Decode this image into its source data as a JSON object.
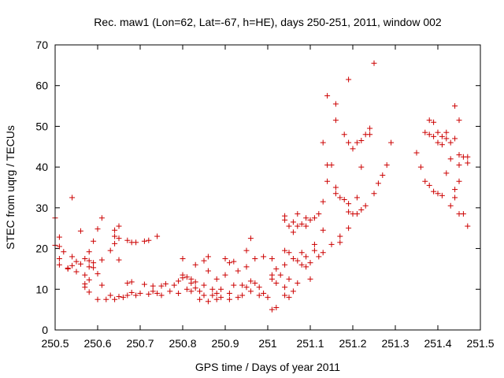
{
  "chart_data": {
    "type": "scatter",
    "title": "Rec. maw1 (Lon=62, Lat=-67, h=HE), days 250-251, 2011, window 002",
    "xlabel": "GPS time / Days of year 2011",
    "ylabel": "STEC from uqrg / TECUs",
    "xlim": [
      250.5,
      251.5
    ],
    "ylim": [
      0,
      70
    ],
    "x_ticks": [
      "250.5",
      "250.6",
      "250.7",
      "250.8",
      "250.9",
      "251",
      "251.1",
      "251.2",
      "251.3",
      "251.4",
      "251.5"
    ],
    "y_ticks": [
      "0",
      "10",
      "20",
      "30",
      "40",
      "50",
      "60",
      "70"
    ],
    "marker": "+",
    "color": "#cc0000",
    "grid": false,
    "legend": "none",
    "series": [
      {
        "values": [
          [
            250.5,
            27.5
          ],
          [
            250.5,
            20.8
          ],
          [
            250.51,
            20.5
          ],
          [
            250.51,
            17.5
          ],
          [
            250.51,
            16.0
          ],
          [
            250.51,
            22.8
          ],
          [
            250.52,
            19.2
          ],
          [
            250.53,
            15.2
          ],
          [
            250.53,
            15.0
          ],
          [
            250.54,
            15.8
          ],
          [
            250.54,
            32.5
          ],
          [
            250.54,
            18.0
          ],
          [
            250.55,
            14.3
          ],
          [
            250.55,
            16.8
          ],
          [
            250.56,
            24.3
          ],
          [
            250.56,
            16.2
          ],
          [
            250.57,
            17.5
          ],
          [
            250.57,
            13.5
          ],
          [
            250.57,
            10.5
          ],
          [
            250.57,
            11.3
          ],
          [
            250.58,
            19.2
          ],
          [
            250.58,
            17.0
          ],
          [
            250.58,
            15.5
          ],
          [
            250.58,
            12.3
          ],
          [
            250.58,
            9.3
          ],
          [
            250.59,
            21.8
          ],
          [
            250.59,
            16.5
          ],
          [
            250.59,
            15.3
          ],
          [
            250.6,
            24.8
          ],
          [
            250.6,
            13.8
          ],
          [
            250.6,
            7.5
          ],
          [
            250.61,
            27.5
          ],
          [
            250.61,
            17.2
          ],
          [
            250.61,
            11.0
          ],
          [
            250.62,
            7.5
          ],
          [
            250.63,
            19.5
          ],
          [
            250.63,
            8.5
          ],
          [
            250.64,
            24.5
          ],
          [
            250.64,
            21.2
          ],
          [
            250.64,
            23.0
          ],
          [
            250.64,
            7.5
          ],
          [
            250.65,
            8.2
          ],
          [
            250.65,
            25.5
          ],
          [
            250.65,
            22.5
          ],
          [
            250.65,
            17.2
          ],
          [
            250.66,
            8.0
          ],
          [
            250.67,
            22.0
          ],
          [
            250.67,
            11.5
          ],
          [
            250.67,
            8.5
          ],
          [
            250.68,
            11.8
          ],
          [
            250.68,
            21.5
          ],
          [
            250.68,
            9.2
          ],
          [
            250.69,
            8.5
          ],
          [
            250.69,
            21.5
          ],
          [
            250.7,
            9.0
          ],
          [
            250.71,
            21.8
          ],
          [
            250.71,
            11.2
          ],
          [
            250.72,
            8.8
          ],
          [
            250.72,
            22.0
          ],
          [
            250.73,
            10.8
          ],
          [
            250.73,
            9.5
          ],
          [
            250.74,
            23.0
          ],
          [
            250.74,
            9.0
          ],
          [
            250.75,
            10.8
          ],
          [
            250.75,
            8.5
          ],
          [
            250.76,
            11.3
          ],
          [
            250.77,
            9.5
          ],
          [
            250.78,
            11.0
          ],
          [
            250.79,
            9.0
          ],
          [
            250.79,
            12.0
          ],
          [
            250.8,
            13.5
          ],
          [
            250.8,
            17.5
          ],
          [
            250.8,
            12.8
          ],
          [
            250.81,
            10.0
          ],
          [
            250.81,
            13.0
          ],
          [
            250.82,
            11.5
          ],
          [
            250.82,
            12.5
          ],
          [
            250.82,
            9.5
          ],
          [
            250.83,
            16.0
          ],
          [
            250.83,
            11.8
          ],
          [
            250.83,
            10.3
          ],
          [
            250.84,
            9.5
          ],
          [
            250.84,
            7.5
          ],
          [
            250.85,
            17.0
          ],
          [
            250.85,
            11.0
          ],
          [
            250.85,
            8.5
          ],
          [
            250.86,
            18.0
          ],
          [
            250.86,
            14.5
          ],
          [
            250.86,
            7.0
          ],
          [
            250.87,
            10.0
          ],
          [
            250.87,
            8.5
          ],
          [
            250.88,
            12.5
          ],
          [
            250.88,
            9.0
          ],
          [
            250.88,
            7.5
          ],
          [
            250.89,
            10.0
          ],
          [
            250.89,
            8.0
          ],
          [
            250.9,
            13.5
          ],
          [
            250.9,
            17.5
          ],
          [
            250.91,
            16.5
          ],
          [
            250.91,
            9.0
          ],
          [
            250.91,
            7.5
          ],
          [
            250.92,
            16.8
          ],
          [
            250.92,
            11.0
          ],
          [
            250.93,
            14.5
          ],
          [
            250.93,
            8.0
          ],
          [
            250.94,
            11.0
          ],
          [
            250.94,
            8.5
          ],
          [
            250.95,
            19.5
          ],
          [
            250.95,
            15.5
          ],
          [
            250.95,
            10.5
          ],
          [
            250.96,
            22.5
          ],
          [
            250.96,
            12.0
          ],
          [
            250.96,
            9.5
          ],
          [
            250.97,
            17.5
          ],
          [
            250.97,
            11.5
          ],
          [
            250.98,
            10.5
          ],
          [
            250.98,
            8.5
          ],
          [
            250.99,
            18.0
          ],
          [
            250.99,
            9.0
          ],
          [
            251.0,
            8.0
          ],
          [
            251.01,
            17.5
          ],
          [
            251.01,
            13.5
          ],
          [
            251.01,
            12.5
          ],
          [
            251.01,
            5.0
          ],
          [
            251.02,
            15.0
          ],
          [
            251.02,
            11.5
          ],
          [
            251.02,
            5.5
          ],
          [
            251.03,
            13.5
          ],
          [
            251.04,
            28.0
          ],
          [
            251.04,
            27.0
          ],
          [
            251.04,
            19.5
          ],
          [
            251.04,
            16.0
          ],
          [
            251.04,
            10.5
          ],
          [
            251.04,
            8.5
          ],
          [
            251.05,
            25.5
          ],
          [
            251.05,
            19.0
          ],
          [
            251.05,
            12.5
          ],
          [
            251.05,
            8.0
          ],
          [
            251.06,
            26.5
          ],
          [
            251.06,
            24.0
          ],
          [
            251.06,
            17.5
          ],
          [
            251.06,
            9.5
          ],
          [
            251.07,
            28.5
          ],
          [
            251.07,
            25.5
          ],
          [
            251.07,
            17.0
          ],
          [
            251.07,
            11.5
          ],
          [
            251.08,
            26.0
          ],
          [
            251.08,
            19.0
          ],
          [
            251.08,
            16.0
          ],
          [
            251.09,
            27.5
          ],
          [
            251.09,
            25.5
          ],
          [
            251.09,
            18.0
          ],
          [
            251.09,
            15.5
          ],
          [
            251.1,
            27.0
          ],
          [
            251.1,
            16.5
          ],
          [
            251.1,
            12.5
          ],
          [
            251.11,
            27.5
          ],
          [
            251.11,
            21.0
          ],
          [
            251.11,
            19.5
          ],
          [
            251.12,
            28.5
          ],
          [
            251.12,
            18.0
          ],
          [
            251.13,
            46.0
          ],
          [
            251.13,
            31.5
          ],
          [
            251.13,
            24.5
          ],
          [
            251.13,
            19.0
          ],
          [
            251.14,
            57.5
          ],
          [
            251.14,
            40.5
          ],
          [
            251.14,
            36.5
          ],
          [
            251.15,
            40.5
          ],
          [
            251.15,
            21.0
          ],
          [
            251.16,
            55.5
          ],
          [
            251.16,
            51.5
          ],
          [
            251.16,
            35.0
          ],
          [
            251.16,
            33.5
          ],
          [
            251.17,
            32.5
          ],
          [
            251.17,
            21.5
          ],
          [
            251.17,
            23.0
          ],
          [
            251.18,
            48.0
          ],
          [
            251.18,
            32.0
          ],
          [
            251.19,
            61.5
          ],
          [
            251.19,
            46.0
          ],
          [
            251.19,
            31.0
          ],
          [
            251.19,
            29.0
          ],
          [
            251.19,
            25.0
          ],
          [
            251.2,
            44.5
          ],
          [
            251.2,
            28.5
          ],
          [
            251.21,
            46.0
          ],
          [
            251.21,
            32.5
          ],
          [
            251.21,
            28.5
          ],
          [
            251.22,
            46.5
          ],
          [
            251.22,
            40.0
          ],
          [
            251.22,
            29.5
          ],
          [
            251.23,
            48.0
          ],
          [
            251.23,
            30.5
          ],
          [
            251.24,
            49.5
          ],
          [
            251.24,
            48.0
          ],
          [
            251.25,
            65.5
          ],
          [
            251.25,
            33.5
          ],
          [
            251.26,
            36.0
          ],
          [
            251.27,
            38.0
          ],
          [
            251.28,
            40.5
          ],
          [
            251.29,
            46.0
          ],
          [
            251.35,
            43.5
          ],
          [
            251.36,
            40.0
          ],
          [
            251.37,
            48.5
          ],
          [
            251.37,
            36.5
          ],
          [
            251.38,
            51.5
          ],
          [
            251.38,
            48.0
          ],
          [
            251.38,
            35.5
          ],
          [
            251.39,
            51.0
          ],
          [
            251.39,
            47.5
          ],
          [
            251.39,
            34.0
          ],
          [
            251.4,
            48.5
          ],
          [
            251.4,
            46.0
          ],
          [
            251.4,
            33.5
          ],
          [
            251.41,
            47.5
          ],
          [
            251.41,
            45.5
          ],
          [
            251.41,
            33.0
          ],
          [
            251.42,
            48.5
          ],
          [
            251.42,
            47.0
          ],
          [
            251.42,
            38.5
          ],
          [
            251.43,
            46.0
          ],
          [
            251.43,
            42.0
          ],
          [
            251.43,
            30.5
          ],
          [
            251.44,
            55.0
          ],
          [
            251.44,
            47.0
          ],
          [
            251.44,
            34.5
          ],
          [
            251.44,
            32.5
          ],
          [
            251.45,
            51.5
          ],
          [
            251.45,
            43.0
          ],
          [
            251.45,
            36.5
          ],
          [
            251.45,
            40.5
          ],
          [
            251.45,
            28.5
          ],
          [
            251.46,
            42.5
          ],
          [
            251.46,
            28.5
          ],
          [
            251.47,
            42.5
          ],
          [
            251.47,
            41.0
          ],
          [
            251.47,
            25.5
          ]
        ]
      }
    ]
  }
}
